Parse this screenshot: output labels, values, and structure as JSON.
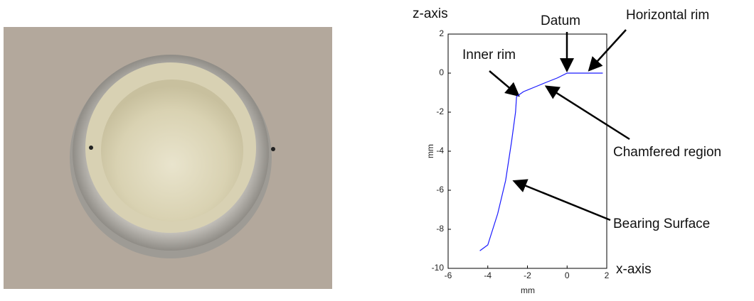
{
  "chart_data": {
    "type": "line",
    "x": [
      -4.4,
      -4.0,
      -3.5,
      -3.1,
      -2.8,
      -2.6,
      -2.55,
      -2.2,
      -1.6,
      -1.0,
      -0.5,
      0,
      1.8
    ],
    "values": [
      -9.1,
      -8.8,
      -7.2,
      -5.5,
      -3.5,
      -2.0,
      -1.2,
      -0.95,
      -0.7,
      -0.45,
      -0.25,
      0,
      0
    ],
    "color": "#1a1aff",
    "xlim": [
      -6,
      2
    ],
    "xticks": [
      -6,
      -4,
      -2,
      0,
      2
    ],
    "ylim": [
      -10,
      2
    ],
    "yticks": [
      -10,
      -8,
      -6,
      -4,
      -2,
      0,
      2
    ],
    "xlabel": "mm",
    "ylabel": "mm",
    "annotations": [
      "z-axis",
      "Datum",
      "Horizontal rim",
      "Inner rim",
      "Chamfered region",
      "Bearing Surface",
      "x-axis"
    ]
  }
}
